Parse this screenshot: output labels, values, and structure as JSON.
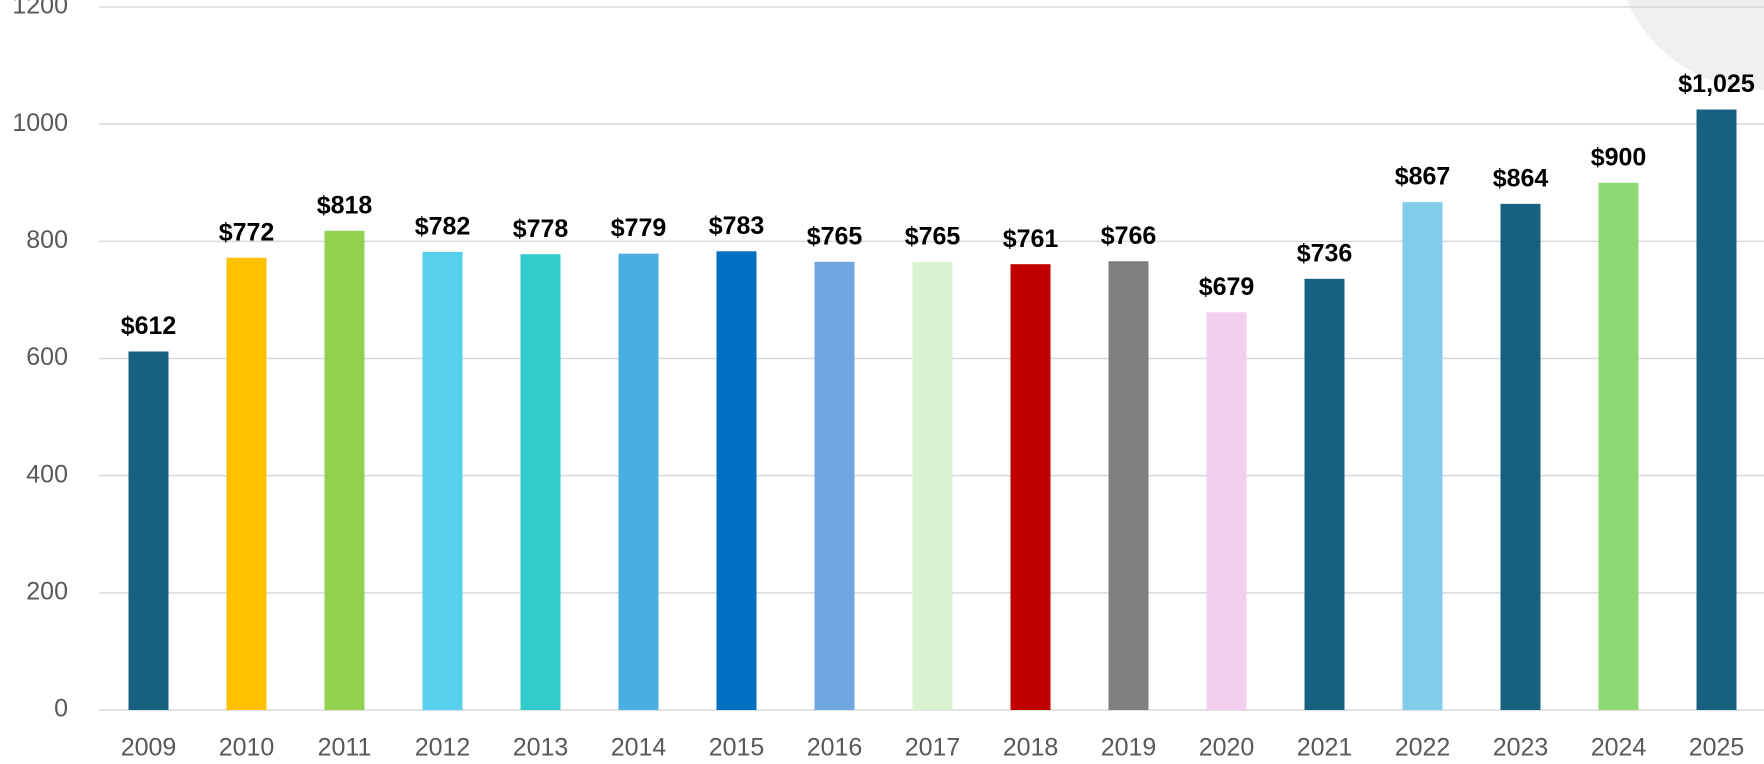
{
  "chart_data": {
    "type": "bar",
    "categories": [
      "2009",
      "2010",
      "2011",
      "2012",
      "2013",
      "2014",
      "2015",
      "2016",
      "2017",
      "2018",
      "2019",
      "2020",
      "2021",
      "2022",
      "2023",
      "2024",
      "2025"
    ],
    "values": [
      612,
      772,
      818,
      782,
      778,
      779,
      783,
      765,
      765,
      761,
      766,
      679,
      736,
      867,
      864,
      900,
      1025
    ],
    "value_labels": [
      "$612",
      "$772",
      "$818",
      "$782",
      "$778",
      "$779",
      "$783",
      "$765",
      "$765",
      "$761",
      "$766",
      "$679",
      "$736",
      "$867",
      "$864",
      "$900",
      "$1,025"
    ],
    "colors": [
      "#17607f",
      "#ffc000",
      "#92d050",
      "#57d0ee",
      "#33cccc",
      "#4aafe0",
      "#0070c0",
      "#71a7e0",
      "#d9f2d0",
      "#c00000",
      "#7f7f7f",
      "#f2cfee",
      "#17607f",
      "#83cbeb",
      "#17607f",
      "#8ed973",
      "#17607f"
    ],
    "ylim": [
      0,
      1200
    ],
    "yticks": [
      0,
      200,
      400,
      600,
      800,
      1000,
      1200
    ],
    "grid": true
  }
}
